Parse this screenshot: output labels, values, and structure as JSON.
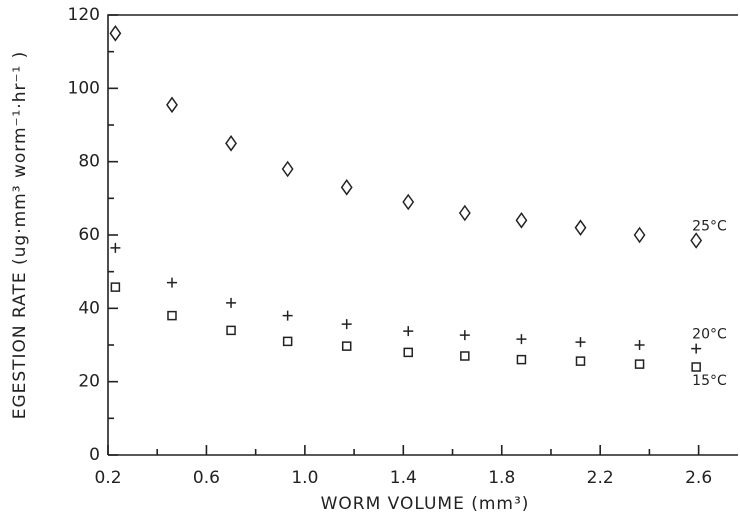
{
  "chart_data": {
    "type": "scatter",
    "x_label": "WORM VOLUME (mm³)",
    "y_label": "EGESTION RATE (ug·mm³ worm⁻¹·hr⁻¹ )",
    "xlim": [
      0.2,
      2.76
    ],
    "ylim": [
      0,
      120
    ],
    "xticks": [
      0.2,
      0.6,
      {
        "value": 1,
        "label": "1.0"
      },
      1.4,
      1.8,
      2.2,
      2.6
    ],
    "yticks": [
      0,
      20,
      40,
      60,
      80,
      100,
      120
    ],
    "x": [
      0.23,
      0.46,
      0.7,
      0.93,
      1.17,
      1.42,
      1.65,
      1.88,
      2.12,
      2.36,
      2.59
    ],
    "series": [
      {
        "name": "25°C",
        "marker": "diamond",
        "color": "#222222",
        "values": [
          115,
          95.5,
          85,
          78,
          73,
          69,
          66,
          64,
          62,
          60,
          58.5
        ]
      },
      {
        "name": "20°C",
        "marker": "plus",
        "color": "#222222",
        "values": [
          56.5,
          47,
          41.5,
          38,
          35.7,
          33.8,
          32.7,
          31.6,
          30.8,
          30,
          29
        ]
      },
      {
        "name": "15°C",
        "marker": "square",
        "color": "#222222",
        "values": [
          45.8,
          38,
          34,
          31,
          29.7,
          28,
          27,
          26,
          25.6,
          24.8,
          24
        ]
      }
    ]
  }
}
